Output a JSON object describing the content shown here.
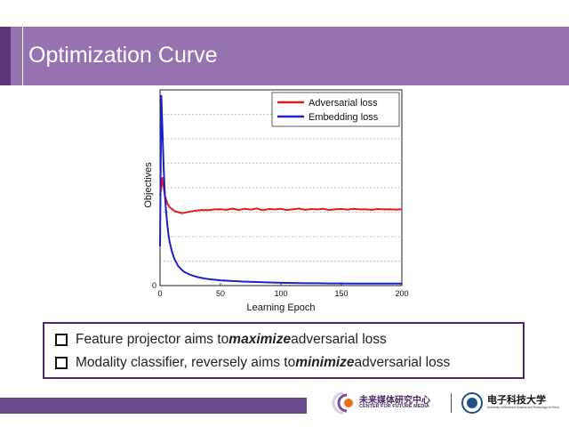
{
  "slide": {
    "title": "Optimization Curve"
  },
  "chart_data": {
    "type": "line",
    "xlabel": "Learning Epoch",
    "ylabel": "Objectives",
    "xlim": [
      0,
      200
    ],
    "xticks": [
      "0",
      "50",
      "100",
      "150",
      "200"
    ],
    "yticks": [
      "0"
    ],
    "ylim": [
      0,
      1
    ],
    "grid": true,
    "legend_position": "top-right",
    "series": [
      {
        "name": "Adversarial loss",
        "color": "#e01b1b",
        "x": [
          0,
          1,
          2,
          3,
          4,
          5,
          6,
          8,
          10,
          12,
          15,
          18,
          20,
          25,
          30,
          35,
          40,
          45,
          50,
          55,
          60,
          65,
          70,
          75,
          80,
          85,
          90,
          95,
          100,
          105,
          110,
          115,
          120,
          125,
          130,
          135,
          140,
          145,
          150,
          155,
          160,
          165,
          170,
          175,
          180,
          185,
          190,
          195,
          200
        ],
        "y": [
          0.46,
          0.5,
          0.55,
          0.5,
          0.46,
          0.44,
          0.42,
          0.4,
          0.39,
          0.38,
          0.375,
          0.37,
          0.372,
          0.378,
          0.383,
          0.386,
          0.385,
          0.389,
          0.39,
          0.387,
          0.393,
          0.386,
          0.392,
          0.388,
          0.394,
          0.385,
          0.391,
          0.389,
          0.392,
          0.386,
          0.39,
          0.393,
          0.387,
          0.391,
          0.389,
          0.392,
          0.386,
          0.39,
          0.391,
          0.388,
          0.392,
          0.389,
          0.39,
          0.387,
          0.391,
          0.389,
          0.39,
          0.388,
          0.39
        ]
      },
      {
        "name": "Embedding loss",
        "color": "#1f1fc8",
        "x": [
          0,
          1,
          2,
          3,
          4,
          5,
          6,
          7,
          8,
          10,
          12,
          15,
          18,
          20,
          25,
          30,
          35,
          40,
          50,
          60,
          70,
          80,
          90,
          100,
          110,
          120,
          130,
          140,
          150,
          160,
          170,
          180,
          190,
          200
        ],
        "y": [
          0.2,
          0.97,
          0.8,
          0.6,
          0.47,
          0.38,
          0.31,
          0.26,
          0.22,
          0.17,
          0.135,
          0.1,
          0.08,
          0.07,
          0.055,
          0.045,
          0.038,
          0.033,
          0.027,
          0.023,
          0.02,
          0.018,
          0.016,
          0.014,
          0.013,
          0.012,
          0.012,
          0.011,
          0.011,
          0.01,
          0.01,
          0.01,
          0.01,
          0.01
        ]
      }
    ]
  },
  "bullets": [
    {
      "before": "Feature projector aims to ",
      "emphasis": "maximize",
      "after": " adversarial loss"
    },
    {
      "before": "Modality classifier, reversely aims to ",
      "emphasis": "minimize",
      "after": " adversarial loss"
    }
  ],
  "footer": {
    "logo1_cn": "未来媒体研究中心",
    "logo1_en": "CENTER FOR FUTURE MEDIA",
    "logo2_cn": "电子科技大学",
    "logo2_en": "University of Electronic Science and Technology of China"
  },
  "colors": {
    "title_bar": "#9673b0",
    "accent": "#5a3578",
    "footer": "#6b4a8c"
  }
}
